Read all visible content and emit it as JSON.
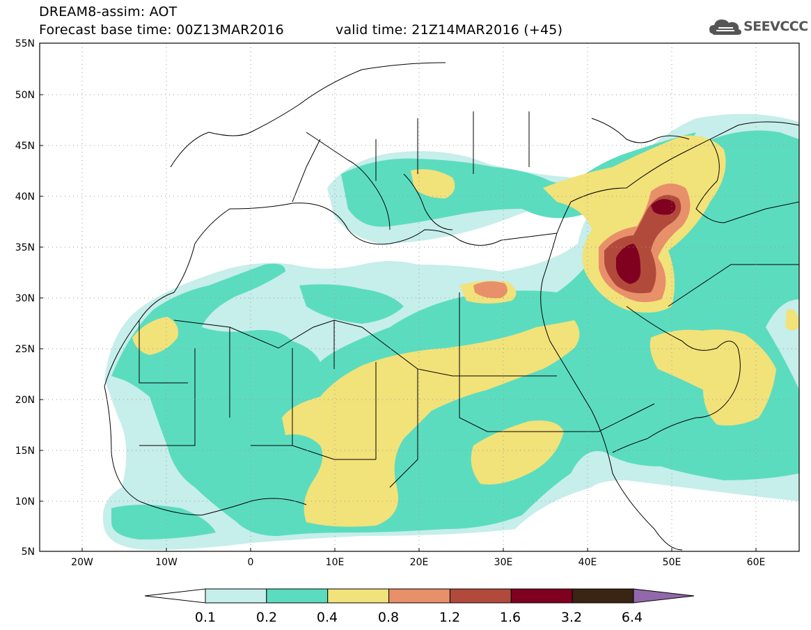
{
  "header": {
    "line1": "DREAM8-assim: AOT",
    "line2_left": "Forecast base time: 00Z13MAR2016",
    "line2_right": "valid time: 21Z14MAR2016 (+45)",
    "logo_text": "SEEVCCC"
  },
  "axes": {
    "lat_labels": [
      "55N",
      "50N",
      "45N",
      "40N",
      "35N",
      "30N",
      "25N",
      "20N",
      "15N",
      "10N",
      "5N"
    ],
    "lon_labels": [
      "20W",
      "10W",
      "0",
      "10E",
      "20E",
      "30E",
      "40E",
      "50E",
      "60E"
    ]
  },
  "colorbar": {
    "labels": [
      "0.1",
      "0.2",
      "0.4",
      "0.8",
      "1.2",
      "1.6",
      "3.2",
      "6.4"
    ],
    "colors": [
      "#ffffff",
      "#c6eeea",
      "#5cdcbf",
      "#f2e27a",
      "#e8906a",
      "#b24a3c",
      "#800020",
      "#3a2414",
      "#9169aa"
    ]
  },
  "colors": {
    "c01": "#c6eeea",
    "c02": "#5cdcbf",
    "c04": "#f2e27a",
    "c08": "#e8906a",
    "c12": "#b24a3c",
    "c16": "#800020"
  }
}
